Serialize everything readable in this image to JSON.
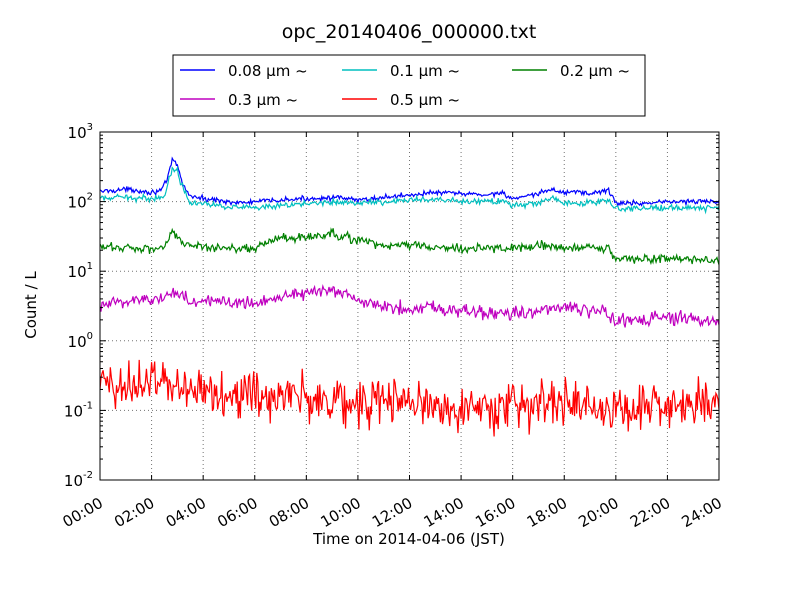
{
  "chart_data": {
    "type": "line",
    "title": "opc_20140406_000000.txt",
    "xlabel": "Time on 2014-04-06 (JST)",
    "ylabel": "Count / L",
    "x_unit": "hours",
    "xlim": [
      0,
      24
    ],
    "ylim": [
      0.01,
      1000
    ],
    "yscale": "log",
    "grid": true,
    "legend_position": "top-center",
    "x_tick_labels": [
      "00:00",
      "02:00",
      "04:00",
      "06:00",
      "08:00",
      "10:00",
      "12:00",
      "14:00",
      "16:00",
      "18:00",
      "20:00",
      "22:00",
      "24:00"
    ],
    "y_ticks": [
      {
        "base": "10",
        "exp": "-2"
      },
      {
        "base": "10",
        "exp": "-1"
      },
      {
        "base": "10",
        "exp": "0"
      },
      {
        "base": "10",
        "exp": "1"
      },
      {
        "base": "10",
        "exp": "2"
      },
      {
        "base": "10",
        "exp": "3"
      }
    ],
    "series": [
      {
        "name": "0.08 μm ~",
        "color": "#0000ff",
        "x": [
          0,
          0.5,
          1,
          1.5,
          2,
          2.4,
          2.6,
          2.8,
          3.0,
          3.2,
          3.5,
          4,
          4.5,
          5,
          5.5,
          6,
          7,
          8,
          9,
          10,
          11,
          12,
          13,
          14,
          15,
          15.6,
          16,
          16.5,
          17,
          17.5,
          18,
          18.5,
          19,
          19.5,
          19.7,
          20,
          21,
          22,
          23,
          24
        ],
        "y": [
          140,
          145,
          150,
          145,
          135,
          150,
          200,
          400,
          330,
          180,
          120,
          110,
          105,
          100,
          95,
          100,
          105,
          110,
          115,
          105,
          115,
          125,
          135,
          130,
          125,
          135,
          110,
          115,
          130,
          150,
          135,
          140,
          130,
          140,
          150,
          95,
          95,
          100,
          100,
          100
        ]
      },
      {
        "name": "0.1 μm ~",
        "color": "#00bfbf",
        "x": [
          0,
          1,
          2,
          2.5,
          2.8,
          3.0,
          3.2,
          3.5,
          4,
          5,
          6,
          7,
          8,
          9,
          10,
          11,
          12,
          13,
          14,
          15,
          15.6,
          16,
          17,
          17.5,
          18,
          19,
          19.5,
          19.7,
          20,
          21,
          22,
          23,
          24
        ],
        "y": [
          110,
          115,
          110,
          120,
          300,
          280,
          160,
          100,
          95,
          85,
          80,
          85,
          95,
          100,
          95,
          100,
          105,
          105,
          100,
          100,
          105,
          85,
          95,
          115,
          95,
          95,
          100,
          110,
          80,
          80,
          82,
          82,
          80
        ]
      },
      {
        "name": "0.2 μm ~",
        "color": "#008000",
        "x": [
          0,
          1,
          2,
          2.5,
          2.8,
          3.0,
          3.2,
          3.5,
          4,
          5,
          6,
          6.5,
          7,
          8,
          9,
          10,
          11,
          12,
          13,
          14,
          15,
          16,
          17,
          18,
          19,
          19.7,
          20,
          21,
          22,
          23,
          24
        ],
        "y": [
          22,
          22,
          21,
          22,
          40,
          32,
          25,
          23,
          22,
          22,
          21,
          27,
          30,
          30,
          34,
          28,
          23,
          24,
          22,
          21,
          22,
          21,
          24,
          21,
          22,
          21,
          15,
          15,
          15,
          15,
          14
        ]
      },
      {
        "name": "0.3 μm ~",
        "color": "#bf00bf",
        "x": [
          0,
          0.5,
          1,
          2,
          2.5,
          2.8,
          3.2,
          3.5,
          4,
          5,
          6,
          7,
          8,
          9,
          10,
          11,
          12,
          13,
          14,
          15,
          16,
          17,
          18,
          19,
          19.7,
          20,
          21,
          22,
          23,
          24
        ],
        "y": [
          3,
          3.5,
          3.8,
          4,
          4,
          5.5,
          4.5,
          3.5,
          3.5,
          3.8,
          3.5,
          4.5,
          5,
          5.2,
          3.8,
          3,
          3,
          3,
          2.8,
          2.5,
          2.5,
          2.7,
          3,
          2.7,
          2.5,
          1.9,
          2,
          2.1,
          2,
          1.9
        ]
      },
      {
        "name": "0.5 μm ~",
        "color": "#ff0000",
        "x": [
          0,
          1,
          2,
          3,
          4,
          5,
          6,
          7,
          8,
          9,
          10,
          11,
          12,
          13,
          14,
          15,
          16,
          17,
          18,
          19,
          20,
          21,
          22,
          23,
          24
        ],
        "y": [
          0.22,
          0.25,
          0.25,
          0.24,
          0.2,
          0.18,
          0.16,
          0.15,
          0.16,
          0.14,
          0.12,
          0.14,
          0.13,
          0.11,
          0.12,
          0.11,
          0.11,
          0.13,
          0.13,
          0.11,
          0.11,
          0.11,
          0.12,
          0.12,
          0.12
        ]
      }
    ]
  }
}
